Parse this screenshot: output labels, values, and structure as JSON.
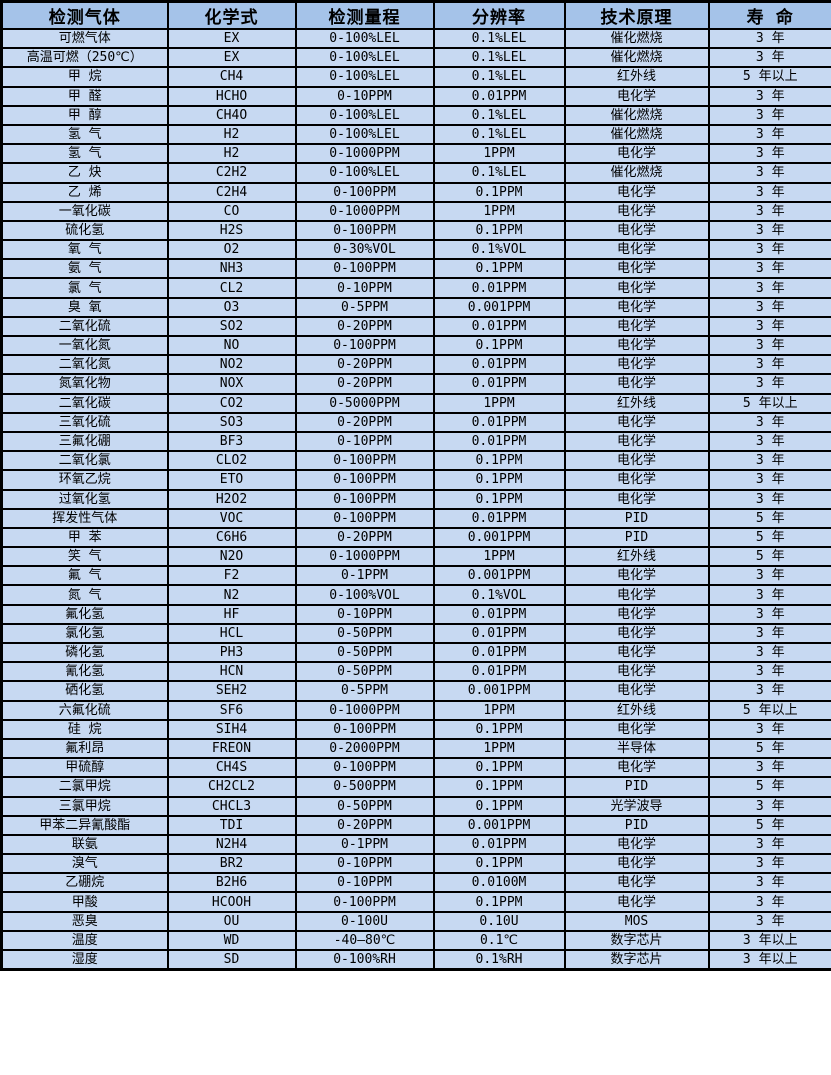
{
  "table": {
    "columns": [
      "检测气体",
      "化学式",
      "检测量程",
      "分辨率",
      "技术原理",
      "寿 命"
    ],
    "rows": [
      [
        "可燃气体",
        "EX",
        "0-100%LEL",
        "0.1%LEL",
        "催化燃烧",
        "3 年"
      ],
      [
        "高温可燃（250℃）",
        "EX",
        "0-100%LEL",
        "0.1%LEL",
        "催化燃烧",
        "3 年"
      ],
      [
        "甲 烷",
        "CH4",
        "0-100%LEL",
        "0.1%LEL",
        "红外线",
        "5 年以上"
      ],
      [
        "甲 醛",
        "HCHO",
        "0-10PPM",
        "0.01PPM",
        "电化学",
        "3 年"
      ],
      [
        "甲 醇",
        "CH4O",
        "0-100%LEL",
        "0.1%LEL",
        "催化燃烧",
        "3 年"
      ],
      [
        "氢 气",
        "H2",
        "0-100%LEL",
        "0.1%LEL",
        "催化燃烧",
        "3 年"
      ],
      [
        "氢 气",
        "H2",
        "0-1000PPM",
        "1PPM",
        "电化学",
        "3 年"
      ],
      [
        "乙 炔",
        "C2H2",
        "0-100%LEL",
        "0.1%LEL",
        "催化燃烧",
        "3 年"
      ],
      [
        "乙 烯",
        "C2H4",
        "0-100PPM",
        "0.1PPM",
        "电化学",
        "3 年"
      ],
      [
        "一氧化碳",
        "CO",
        "0-1000PPM",
        "1PPM",
        "电化学",
        "3 年"
      ],
      [
        "硫化氢",
        "H2S",
        "0-100PPM",
        "0.1PPM",
        "电化学",
        "3 年"
      ],
      [
        "氧 气",
        "O2",
        "0-30%VOL",
        "0.1%VOL",
        "电化学",
        "3 年"
      ],
      [
        "氨 气",
        "NH3",
        "0-100PPM",
        "0.1PPM",
        "电化学",
        "3 年"
      ],
      [
        "氯 气",
        "CL2",
        "0-10PPM",
        "0.01PPM",
        "电化学",
        "3 年"
      ],
      [
        "臭 氧",
        "O3",
        "0-5PPM",
        "0.001PPM",
        "电化学",
        "3 年"
      ],
      [
        "二氧化硫",
        "SO2",
        "0-20PPM",
        "0.01PPM",
        "电化学",
        "3 年"
      ],
      [
        "一氧化氮",
        "NO",
        "0-100PPM",
        "0.1PPM",
        "电化学",
        "3 年"
      ],
      [
        "二氧化氮",
        "NO2",
        "0-20PPM",
        "0.01PPM",
        "电化学",
        "3 年"
      ],
      [
        "氮氧化物",
        "NOX",
        "0-20PPM",
        "0.01PPM",
        "电化学",
        "3 年"
      ],
      [
        "二氧化碳",
        "CO2",
        "0-5000PPM",
        "1PPM",
        "红外线",
        "5 年以上"
      ],
      [
        "三氧化硫",
        "SO3",
        "0-20PPM",
        "0.01PPM",
        "电化学",
        "3 年"
      ],
      [
        "三氟化硼",
        "BF3",
        "0-10PPM",
        "0.01PPM",
        "电化学",
        "3 年"
      ],
      [
        "二氧化氯",
        "CLO2",
        "0-100PPM",
        "0.1PPM",
        "电化学",
        "3 年"
      ],
      [
        "环氧乙烷",
        "ETO",
        "0-100PPM",
        "0.1PPM",
        "电化学",
        "3 年"
      ],
      [
        "过氧化氢",
        "H2O2",
        "0-100PPM",
        "0.1PPM",
        "电化学",
        "3 年"
      ],
      [
        "挥发性气体",
        "VOC",
        "0-100PPM",
        "0.01PPM",
        "PID",
        "5 年"
      ],
      [
        "甲 苯",
        "C6H6",
        "0-20PPM",
        "0.001PPM",
        "PID",
        "5 年"
      ],
      [
        "笑 气",
        "N2O",
        "0-1000PPM",
        "1PPM",
        "红外线",
        "5 年"
      ],
      [
        "氟 气",
        "F2",
        "0-1PPM",
        "0.001PPM",
        "电化学",
        "3 年"
      ],
      [
        "氮 气",
        "N2",
        "0-100%VOL",
        "0.1%VOL",
        "电化学",
        "3 年"
      ],
      [
        "氟化氢",
        "HF",
        "0-10PPM",
        "0.01PPM",
        "电化学",
        "3 年"
      ],
      [
        "氯化氢",
        "HCL",
        "0-50PPM",
        "0.01PPM",
        "电化学",
        "3 年"
      ],
      [
        "磷化氢",
        "PH3",
        "0-50PPM",
        "0.01PPM",
        "电化学",
        "3 年"
      ],
      [
        "氰化氢",
        "HCN",
        "0-50PPM",
        "0.01PPM",
        "电化学",
        "3 年"
      ],
      [
        "硒化氢",
        "SEH2",
        "0-5PPM",
        "0.001PPM",
        "电化学",
        "3 年"
      ],
      [
        "六氟化硫",
        "SF6",
        "0-1000PPM",
        "1PPM",
        "红外线",
        "5 年以上"
      ],
      [
        "硅 烷",
        "SIH4",
        "0-100PPM",
        "0.1PPM",
        "电化学",
        "3 年"
      ],
      [
        "氟利昂",
        "FREON",
        "0-2000PPM",
        "1PPM",
        "半导体",
        "5 年"
      ],
      [
        "甲硫醇",
        "CH4S",
        "0-100PPM",
        "0.1PPM",
        "电化学",
        "3 年"
      ],
      [
        "二氯甲烷",
        "CH2CL2",
        "0-500PPM",
        "0.1PPM",
        "PID",
        "5 年"
      ],
      [
        "三氯甲烷",
        "CHCL3",
        "0-50PPM",
        "0.1PPM",
        "光学波导",
        "3 年"
      ],
      [
        "甲苯二异氰酸酯",
        "TDI",
        "0-20PPM",
        "0.001PPM",
        "PID",
        "5 年"
      ],
      [
        "联氨",
        "N2H4",
        "0-1PPM",
        "0.01PPM",
        "电化学",
        "3 年"
      ],
      [
        "溴气",
        "BR2",
        "0-10PPM",
        "0.1PPM",
        "电化学",
        "3 年"
      ],
      [
        "乙硼烷",
        "B2H6",
        "0-10PPM",
        "0.0100M",
        "电化学",
        "3 年"
      ],
      [
        "甲酸",
        "HCOOH",
        "0-100PPM",
        "0.1PPM",
        "电化学",
        "3 年"
      ],
      [
        "恶臭",
        "OU",
        "0-100U",
        "0.10U",
        "MOS",
        "3 年"
      ],
      [
        "温度",
        "WD",
        "-40—80℃",
        "0.1℃",
        "数字芯片",
        "3 年以上"
      ],
      [
        "湿度",
        "SD",
        "0-100%RH",
        "0.1%RH",
        "数字芯片",
        "3 年以上"
      ]
    ]
  },
  "colors": {
    "header_bg": "#a5c3e9",
    "cell_bg": "#c7d9f2",
    "border": "#000000",
    "text": "#000000"
  }
}
